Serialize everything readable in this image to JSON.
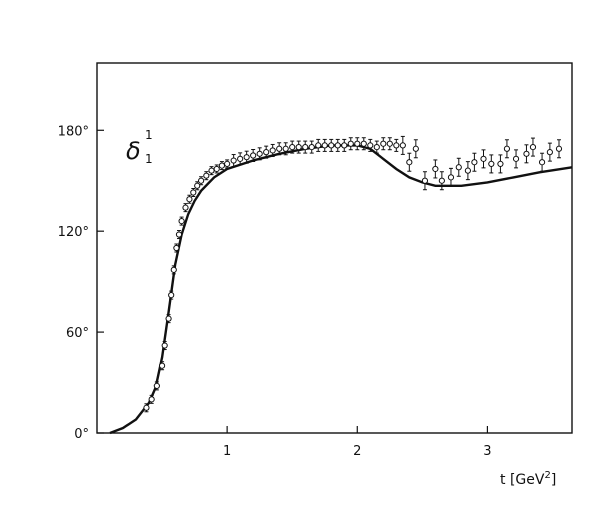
{
  "chart_data": {
    "type": "scatter",
    "panel_label": {
      "symbol": "δ",
      "superscript": "1",
      "subscript": "1"
    },
    "xlabel": {
      "prefix": "t [GeV",
      "power": "2",
      "suffix": "]"
    },
    "ylabel": "",
    "xlim": [
      0,
      3.65
    ],
    "ylim": [
      0,
      220
    ],
    "x_ticks": [
      {
        "value": 1,
        "label": "1"
      },
      {
        "value": 2,
        "label": "2"
      },
      {
        "value": 3,
        "label": "3"
      }
    ],
    "y_ticks": [
      {
        "value": 0,
        "label": "0°"
      },
      {
        "value": 60,
        "label": "60°"
      },
      {
        "value": 120,
        "label": "120°"
      },
      {
        "value": 180,
        "label": "180°"
      }
    ],
    "grid": false,
    "series": [
      {
        "kind": "line",
        "x": [
          0.1,
          0.2,
          0.3,
          0.4,
          0.45,
          0.5,
          0.55,
          0.6,
          0.65,
          0.7,
          0.75,
          0.8,
          0.9,
          1.0,
          1.2,
          1.4,
          1.6,
          1.8,
          2.0,
          2.1,
          2.2,
          2.3,
          2.4,
          2.5,
          2.6,
          2.8,
          3.0,
          3.2,
          3.4,
          3.65
        ],
        "y": [
          0,
          3,
          8,
          18,
          27,
          45,
          72,
          100,
          118,
          130,
          138,
          144,
          152,
          157,
          162,
          166,
          169,
          171,
          171,
          169,
          163,
          157,
          152,
          149,
          147,
          147,
          149,
          152,
          155,
          158
        ]
      },
      {
        "kind": "points",
        "x": [
          0.38,
          0.42,
          0.46,
          0.5,
          0.52,
          0.55,
          0.57,
          0.59,
          0.61,
          0.63,
          0.65,
          0.68,
          0.71,
          0.74,
          0.77,
          0.8,
          0.84,
          0.88,
          0.92,
          0.96,
          1.0,
          1.05,
          1.1,
          1.15,
          1.2,
          1.25,
          1.3,
          1.35,
          1.4,
          1.45,
          1.5,
          1.55,
          1.6,
          1.65,
          1.7,
          1.75,
          1.8,
          1.85,
          1.9,
          1.95,
          2.0,
          2.05,
          2.1,
          2.15,
          2.2,
          2.25,
          2.3,
          2.35,
          2.4,
          2.45,
          2.52,
          2.6,
          2.65,
          2.72,
          2.78,
          2.85,
          2.9,
          2.97,
          3.03,
          3.1,
          3.15,
          3.22,
          3.3,
          3.35,
          3.42,
          3.48,
          3.55
        ],
        "y": [
          15,
          20,
          28,
          40,
          52,
          68,
          82,
          97,
          110,
          118,
          126,
          134,
          139,
          143,
          147,
          150,
          153,
          156,
          157,
          159,
          160,
          162,
          163,
          164,
          165,
          166,
          167,
          168,
          169,
          169,
          170,
          170,
          170,
          170,
          171,
          171,
          171,
          171,
          171,
          172,
          172,
          172,
          171,
          170,
          172,
          172,
          171,
          171,
          161,
          169,
          150,
          157,
          150,
          152,
          158,
          156,
          161,
          163,
          160,
          160,
          169,
          163,
          166,
          170,
          161,
          167,
          169
        ]
      }
    ]
  }
}
